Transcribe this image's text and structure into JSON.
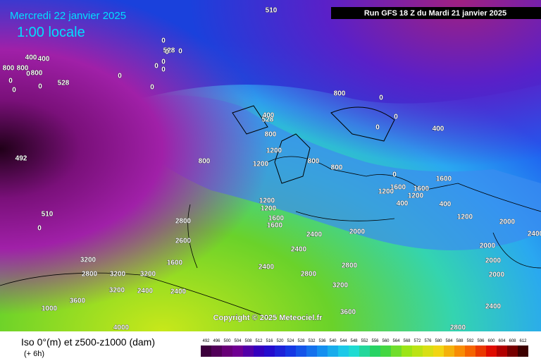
{
  "header": {
    "date": "Mercredi 22 janvier 2025",
    "time": "1:00 locale",
    "run": "Run GFS 18 Z du Mardi 21 janvier 2025"
  },
  "copyright": "Copyright © 2025 Meteociel.fr",
  "footer": {
    "legend": "Iso 0°(m) et z500-z1000 (dam)",
    "step": "(+ 6h)"
  },
  "scale": [
    "492",
    "496",
    "500",
    "504",
    "508",
    "512",
    "516",
    "520",
    "524",
    "528",
    "532",
    "536",
    "540",
    "544",
    "548",
    "552",
    "556",
    "560",
    "564",
    "568",
    "572",
    "576",
    "580",
    "584",
    "588",
    "592",
    "596",
    "600",
    "604",
    "608",
    "612"
  ],
  "contour_labels": [
    "510",
    "528",
    "528",
    "492",
    "510",
    "400",
    "400",
    "800",
    "800",
    "800",
    "0",
    "0",
    "0",
    "0",
    "0",
    "0",
    "0",
    "0",
    "0",
    "0",
    "0",
    "0",
    "0",
    "528",
    "0",
    "0",
    "0",
    "800",
    "400",
    "800",
    "1200",
    "1200",
    "800",
    "800",
    "800",
    "400",
    "1600",
    "1600",
    "1600",
    "400",
    "1200",
    "1200",
    "1600",
    "2800",
    "2600",
    "2400",
    "2400",
    "2400",
    "2000",
    "2000",
    "1600",
    "3200",
    "3200",
    "3200",
    "2800",
    "3200",
    "2400",
    "3600",
    "4000",
    "2400",
    "2800",
    "2800",
    "3200",
    "3600",
    "1000",
    "2800",
    "2000",
    "2000",
    "2400",
    "1200",
    "1200",
    "400",
    "1600",
    "1200",
    "2000",
    "2400",
    "0"
  ]
}
